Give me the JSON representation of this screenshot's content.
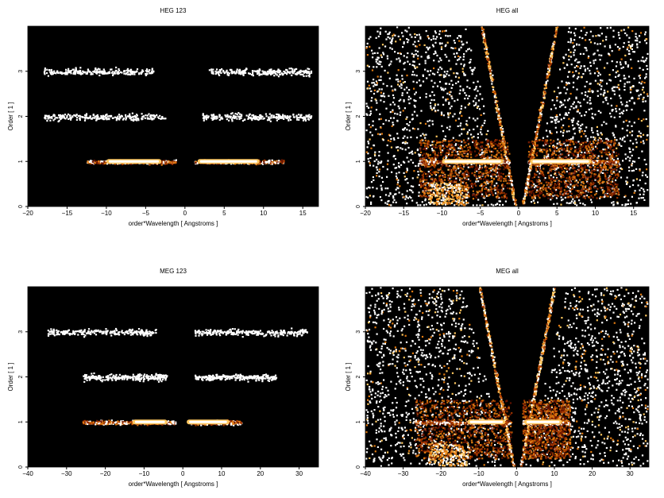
{
  "chart_data": [
    {
      "type": "heatmap",
      "title": "HEG 123",
      "xlabel": "order*Wavelength [ Angstroms ]",
      "ylabel": "Order [ 1 ]",
      "xlim": [
        -20,
        17
      ],
      "ylim": [
        0,
        4
      ],
      "xticks": [
        -20,
        -15,
        -10,
        -5,
        0,
        5,
        10,
        15
      ],
      "yticks": [
        0,
        1,
        2,
        3
      ],
      "background": "#000000",
      "colormap": [
        "#2a0500",
        "#6b1400",
        "#a83a00",
        "#e07a10",
        "#ffc860",
        "#ffffff"
      ],
      "bands": [
        {
          "order": 1,
          "x_min": -12.5,
          "x_max": -1.2,
          "core": [
            -10,
            -3
          ],
          "level": "strong"
        },
        {
          "order": 1,
          "x_min": 1.2,
          "x_max": 12.5,
          "core": [
            1.6,
            9.5
          ],
          "level": "strong"
        },
        {
          "order": 2,
          "x_min": -18,
          "x_max": -2.5,
          "level": "weak"
        },
        {
          "order": 2,
          "x_min": 2,
          "x_max": 16,
          "level": "weak"
        },
        {
          "order": 3,
          "x_min": -18,
          "x_max": -4,
          "level": "weak"
        },
        {
          "order": 3,
          "x_min": 3,
          "x_max": 16,
          "level": "weak"
        }
      ]
    },
    {
      "type": "heatmap",
      "title": "HEG all",
      "xlabel": "order*Wavelength [ Angstroms ]",
      "ylabel": "Order [ 1 ]",
      "xlim": [
        -20,
        17
      ],
      "ylim": [
        0,
        4
      ],
      "xticks": [
        -20,
        -15,
        -10,
        -5,
        0,
        5,
        10,
        15
      ],
      "yticks": [
        0,
        1,
        2,
        3
      ],
      "background": "#000000",
      "colormap": [
        "#2a0500",
        "#6b1400",
        "#a83a00",
        "#e07a10",
        "#ffc860",
        "#ffffff"
      ],
      "bands": [
        {
          "order": 1,
          "x_min": -13,
          "x_max": -1.2,
          "core": [
            -10,
            -2
          ],
          "level": "strong"
        },
        {
          "order": 1,
          "x_min": 1.2,
          "x_max": 13,
          "core": [
            1.5,
            9.5
          ],
          "level": "strong"
        }
      ]
    },
    {
      "type": "heatmap",
      "title": "MEG 123",
      "xlabel": "order*Wavelength [ Angstroms ]",
      "ylabel": "Order [ 1 ]",
      "xlim": [
        -40,
        35
      ],
      "ylim": [
        0,
        4
      ],
      "xticks": [
        -40,
        -30,
        -20,
        -10,
        0,
        10,
        20,
        30
      ],
      "yticks": [
        0,
        1,
        2,
        3
      ],
      "background": "#000000",
      "colormap": [
        "#2a0500",
        "#6b1400",
        "#a83a00",
        "#e07a10",
        "#ffc860",
        "#ffffff"
      ],
      "bands": [
        {
          "order": 1,
          "x_min": -26,
          "x_max": -2,
          "core": [
            -13,
            -4
          ],
          "level": "strong"
        },
        {
          "order": 1,
          "x_min": 2,
          "x_max": 15,
          "core": [
            1,
            12
          ],
          "level": "strong"
        },
        {
          "order": 2,
          "x_min": -26,
          "x_max": -4,
          "level": "weak"
        },
        {
          "order": 2,
          "x_min": 3,
          "x_max": 24,
          "level": "weak"
        },
        {
          "order": 3,
          "x_min": -35,
          "x_max": -7,
          "level": "weak"
        },
        {
          "order": 3,
          "x_min": 3,
          "x_max": 32,
          "level": "weak"
        }
      ]
    },
    {
      "type": "heatmap",
      "title": "MEG all",
      "xlabel": "order*Wavelength [ Angstroms ]",
      "ylabel": "Order [ 1 ]",
      "xlim": [
        -40,
        35
      ],
      "ylim": [
        0,
        4
      ],
      "xticks": [
        -40,
        -30,
        -20,
        -10,
        0,
        10,
        20,
        30
      ],
      "yticks": [
        0,
        1,
        2,
        3
      ],
      "background": "#000000",
      "colormap": [
        "#2a0500",
        "#6b1400",
        "#a83a00",
        "#e07a10",
        "#ffc860",
        "#ffffff"
      ],
      "bands": [
        {
          "order": 1,
          "x_min": -27,
          "x_max": -1.5,
          "core": [
            -13,
            -3
          ],
          "level": "strong"
        },
        {
          "order": 1,
          "x_min": 1.5,
          "x_max": 14,
          "core": [
            2,
            12
          ],
          "level": "strong"
        }
      ]
    }
  ]
}
